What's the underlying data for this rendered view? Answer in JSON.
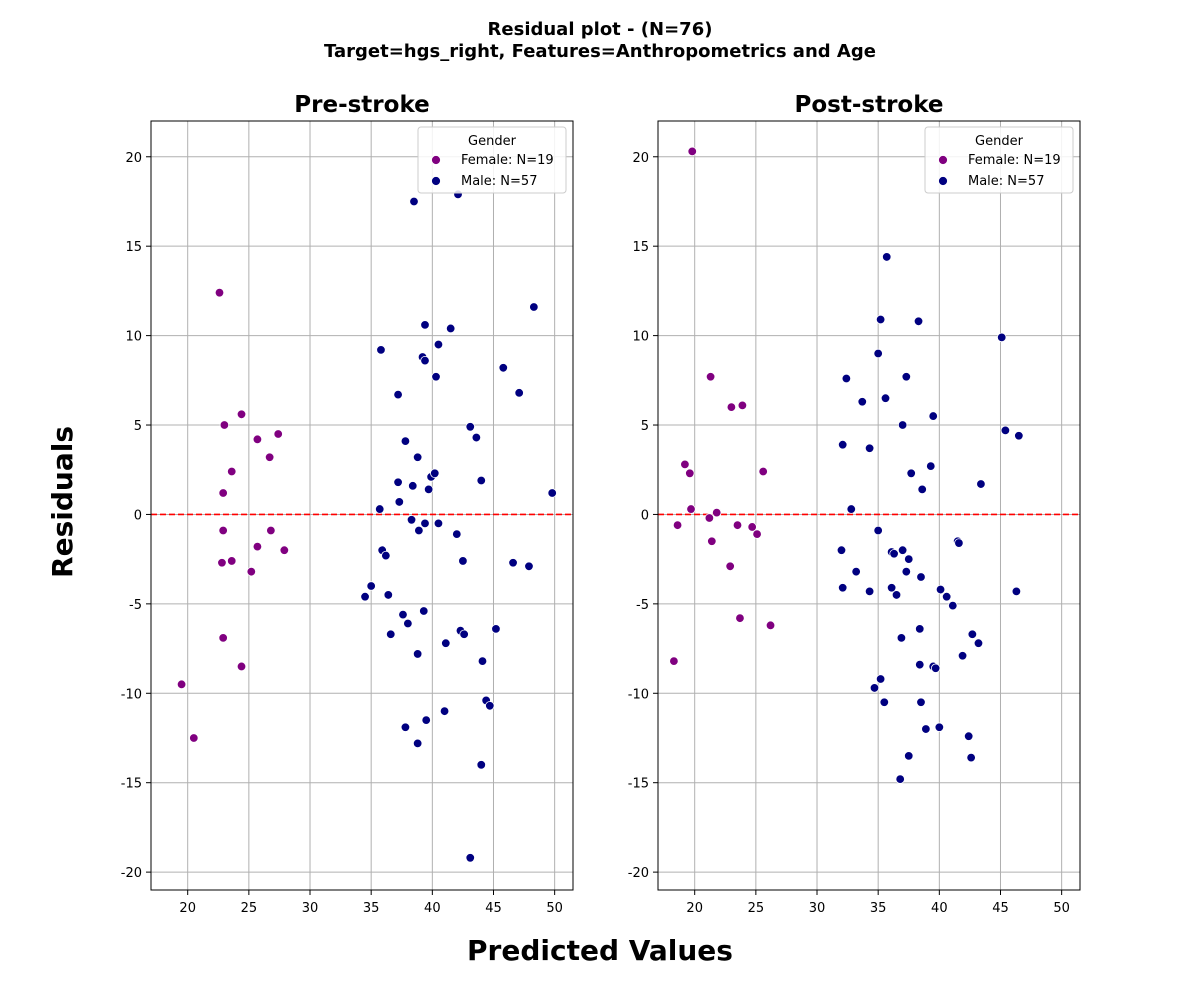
{
  "figure": {
    "title_line1": "Residual plot -  (N=76)",
    "title_line2": "Target=hgs_right, Features=Anthropometrics and Age",
    "xlabel": "Predicted Values",
    "ylabel": "Residuals"
  },
  "colors": {
    "female": "#800080",
    "male": "#000080",
    "reference_line": "#ff0000",
    "grid": "#b0b0b0"
  },
  "chart_data": [
    {
      "type": "scatter",
      "title": "Pre-stroke",
      "xlim": [
        17,
        51.5
      ],
      "ylim": [
        -21,
        22
      ],
      "xticks": [
        20,
        25,
        30,
        35,
        40,
        45,
        50
      ],
      "yticks": [
        -20,
        -15,
        -10,
        -5,
        0,
        5,
        10,
        15,
        20
      ],
      "grid": true,
      "reference_line_y": 0,
      "legend": {
        "title": "Gender",
        "placement": "top-right"
      },
      "series": [
        {
          "name": "Female: N=19",
          "color": "#800080",
          "points": [
            [
              22.6,
              12.4
            ],
            [
              24.4,
              5.6
            ],
            [
              23.0,
              5.0
            ],
            [
              25.7,
              4.2
            ],
            [
              27.4,
              4.5
            ],
            [
              26.7,
              3.2
            ],
            [
              23.6,
              2.4
            ],
            [
              22.9,
              1.2
            ],
            [
              22.9,
              -0.9
            ],
            [
              26.8,
              -0.9
            ],
            [
              25.7,
              -1.8
            ],
            [
              27.9,
              -2.0
            ],
            [
              22.8,
              -2.7
            ],
            [
              23.6,
              -2.6
            ],
            [
              25.2,
              -3.2
            ],
            [
              22.9,
              -6.9
            ],
            [
              24.4,
              -8.5
            ],
            [
              19.5,
              -9.5
            ],
            [
              20.5,
              -12.5
            ]
          ]
        },
        {
          "name": "Male: N=57",
          "color": "#000080",
          "points": [
            [
              38.5,
              17.5
            ],
            [
              42.1,
              17.9
            ],
            [
              48.3,
              11.6
            ],
            [
              39.4,
              10.6
            ],
            [
              41.5,
              10.4
            ],
            [
              40.5,
              9.5
            ],
            [
              35.8,
              9.2
            ],
            [
              39.2,
              8.8
            ],
            [
              39.4,
              8.6
            ],
            [
              45.8,
              8.2
            ],
            [
              40.3,
              7.7
            ],
            [
              47.1,
              6.8
            ],
            [
              37.2,
              6.7
            ],
            [
              43.1,
              4.9
            ],
            [
              43.6,
              4.3
            ],
            [
              37.8,
              4.1
            ],
            [
              38.8,
              3.2
            ],
            [
              39.9,
              2.1
            ],
            [
              44.0,
              1.9
            ],
            [
              37.2,
              1.8
            ],
            [
              38.4,
              1.6
            ],
            [
              39.7,
              1.4
            ],
            [
              49.8,
              1.2
            ],
            [
              37.3,
              0.7
            ],
            [
              35.7,
              0.3
            ],
            [
              38.3,
              -0.3
            ],
            [
              39.4,
              -0.5
            ],
            [
              40.5,
              -0.5
            ],
            [
              38.9,
              -0.9
            ],
            [
              42.0,
              -1.1
            ],
            [
              35.9,
              -2.0
            ],
            [
              36.2,
              -2.3
            ],
            [
              42.5,
              -2.6
            ],
            [
              46.6,
              -2.7
            ],
            [
              47.9,
              -2.9
            ],
            [
              36.4,
              -4.5
            ],
            [
              34.5,
              -4.6
            ],
            [
              45.2,
              -6.4
            ],
            [
              42.3,
              -6.5
            ],
            [
              42.6,
              -6.7
            ],
            [
              36.6,
              -6.7
            ],
            [
              37.6,
              -5.6
            ],
            [
              38.0,
              -6.1
            ],
            [
              39.3,
              -5.4
            ],
            [
              41.1,
              -7.2
            ],
            [
              38.8,
              -7.8
            ],
            [
              44.1,
              -8.2
            ],
            [
              44.4,
              -10.4
            ],
            [
              44.7,
              -10.7
            ],
            [
              41.0,
              -11.0
            ],
            [
              39.5,
              -11.5
            ],
            [
              37.8,
              -11.9
            ],
            [
              38.8,
              -12.8
            ],
            [
              44.0,
              -14.0
            ],
            [
              43.1,
              -19.2
            ],
            [
              35.0,
              -4.0
            ],
            [
              40.2,
              2.3
            ]
          ]
        }
      ]
    },
    {
      "type": "scatter",
      "title": "Post-stroke",
      "xlim": [
        17,
        51.5
      ],
      "ylim": [
        -21,
        22
      ],
      "xticks": [
        20,
        25,
        30,
        35,
        40,
        45,
        50
      ],
      "yticks": [
        -20,
        -15,
        -10,
        -5,
        0,
        5,
        10,
        15,
        20
      ],
      "grid": true,
      "reference_line_y": 0,
      "legend": {
        "title": "Gender",
        "placement": "top-right"
      },
      "series": [
        {
          "name": "Female: N=19",
          "color": "#800080",
          "points": [
            [
              19.8,
              20.3
            ],
            [
              21.3,
              7.7
            ],
            [
              23.0,
              6.0
            ],
            [
              23.9,
              6.1
            ],
            [
              19.2,
              2.8
            ],
            [
              19.6,
              2.3
            ],
            [
              25.6,
              2.4
            ],
            [
              19.7,
              0.3
            ],
            [
              21.8,
              0.1
            ],
            [
              21.2,
              -0.2
            ],
            [
              18.6,
              -0.6
            ],
            [
              23.5,
              -0.6
            ],
            [
              24.7,
              -0.7
            ],
            [
              25.1,
              -1.1
            ],
            [
              21.4,
              -1.5
            ],
            [
              22.9,
              -2.9
            ],
            [
              23.7,
              -5.8
            ],
            [
              26.2,
              -6.2
            ],
            [
              18.3,
              -8.2
            ]
          ]
        },
        {
          "name": "Male: N=57",
          "color": "#000080",
          "points": [
            [
              35.7,
              14.4
            ],
            [
              35.2,
              10.9
            ],
            [
              38.3,
              10.8
            ],
            [
              45.1,
              9.9
            ],
            [
              35.0,
              9.0
            ],
            [
              32.4,
              7.6
            ],
            [
              37.3,
              7.7
            ],
            [
              35.6,
              6.5
            ],
            [
              33.7,
              6.3
            ],
            [
              39.5,
              5.5
            ],
            [
              37.0,
              5.0
            ],
            [
              45.4,
              4.7
            ],
            [
              46.5,
              4.4
            ],
            [
              32.1,
              3.9
            ],
            [
              34.3,
              3.7
            ],
            [
              39.3,
              2.7
            ],
            [
              37.7,
              2.3
            ],
            [
              43.4,
              1.7
            ],
            [
              38.6,
              1.4
            ],
            [
              32.8,
              0.3
            ],
            [
              35.0,
              -0.9
            ],
            [
              41.5,
              -1.5
            ],
            [
              41.6,
              -1.6
            ],
            [
              32.0,
              -2.0
            ],
            [
              36.1,
              -2.1
            ],
            [
              36.3,
              -2.2
            ],
            [
              37.0,
              -2.0
            ],
            [
              37.5,
              -2.5
            ],
            [
              33.2,
              -3.2
            ],
            [
              37.3,
              -3.2
            ],
            [
              38.5,
              -3.5
            ],
            [
              32.1,
              -4.1
            ],
            [
              34.3,
              -4.3
            ],
            [
              36.1,
              -4.1
            ],
            [
              36.5,
              -4.5
            ],
            [
              40.1,
              -4.2
            ],
            [
              40.6,
              -4.6
            ],
            [
              46.3,
              -4.3
            ],
            [
              41.1,
              -5.1
            ],
            [
              38.4,
              -6.4
            ],
            [
              36.9,
              -6.9
            ],
            [
              42.7,
              -6.7
            ],
            [
              43.2,
              -7.2
            ],
            [
              41.9,
              -7.9
            ],
            [
              38.4,
              -8.4
            ],
            [
              39.5,
              -8.5
            ],
            [
              39.7,
              -8.6
            ],
            [
              35.2,
              -9.2
            ],
            [
              34.7,
              -9.7
            ],
            [
              35.5,
              -10.5
            ],
            [
              38.5,
              -10.5
            ],
            [
              38.9,
              -12.0
            ],
            [
              40.0,
              -11.9
            ],
            [
              42.4,
              -12.4
            ],
            [
              42.6,
              -13.6
            ],
            [
              37.5,
              -13.5
            ],
            [
              36.8,
              -14.8
            ]
          ]
        }
      ]
    }
  ]
}
